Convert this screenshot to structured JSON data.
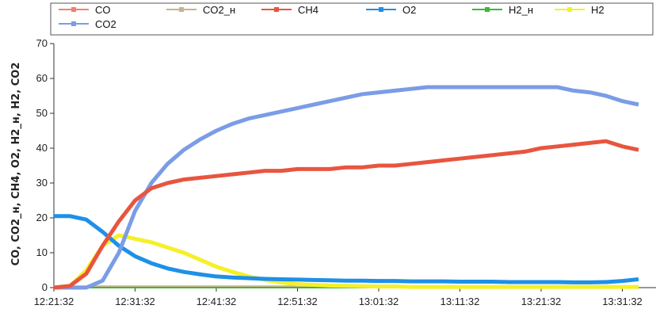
{
  "chart_data": {
    "type": "line",
    "title": "",
    "xlabel": "",
    "ylabel": "CO, CO2_н, CH4, O2, H2_н, H2, CO2",
    "ylim": [
      0,
      70
    ],
    "yticks": [
      0,
      10,
      20,
      30,
      40,
      50,
      60,
      70
    ],
    "xticks": [
      "12:21:32",
      "12:31:32",
      "12:41:32",
      "12:51:32",
      "13:01:32",
      "13:11:32",
      "13:21:32",
      "13:31:32"
    ],
    "grid": false,
    "legend_position": "top",
    "x": [
      "12:21:32",
      "12:23:32",
      "12:25:32",
      "12:27:32",
      "12:29:32",
      "12:31:32",
      "12:33:32",
      "12:35:32",
      "12:37:32",
      "12:39:32",
      "12:41:32",
      "12:43:32",
      "12:45:32",
      "12:47:32",
      "12:49:32",
      "12:51:32",
      "12:53:32",
      "12:55:32",
      "12:57:32",
      "12:59:32",
      "13:01:32",
      "13:03:32",
      "13:05:32",
      "13:07:32",
      "13:09:32",
      "13:11:32",
      "13:13:32",
      "13:15:32",
      "13:17:32",
      "13:19:32",
      "13:21:32",
      "13:23:32",
      "13:25:32",
      "13:27:32",
      "13:29:32",
      "13:31:32",
      "13:33:32"
    ],
    "series": [
      {
        "name": "CO",
        "color": "#f08070",
        "values": [
          0,
          0,
          0,
          0,
          0,
          0,
          0,
          0,
          0,
          0,
          0,
          0,
          0,
          0,
          0,
          0,
          0,
          0,
          0,
          0,
          0,
          0,
          0,
          0,
          0,
          0,
          0,
          0,
          0,
          0,
          0,
          0,
          0,
          0,
          0,
          0,
          0
        ]
      },
      {
        "name": "CO2_н",
        "color": "#c8b48c",
        "values": [
          0.4,
          0.4,
          0.4,
          0.4,
          0.4,
          0.4,
          0.4,
          0.4,
          0.4,
          0.4,
          0.4,
          0.4,
          0.4,
          0.4,
          0.4,
          0.4,
          0.4,
          0.4,
          0.4,
          0.4,
          0.4,
          0.4,
          0.4,
          0.4,
          0.4,
          0.4,
          0.4,
          0.4,
          0.4,
          0.4,
          0.4,
          0.4,
          0.4,
          0.4,
          0.4,
          0.4,
          0.4
        ]
      },
      {
        "name": "CH4",
        "color": "#e8553f",
        "values": [
          0,
          0.5,
          4,
          12,
          19,
          25,
          28.5,
          30,
          31,
          31.5,
          32,
          32.5,
          33,
          33.5,
          33.5,
          34,
          34,
          34,
          34.5,
          34.5,
          35,
          35,
          35.5,
          36,
          36.5,
          37,
          37.5,
          38,
          38.5,
          39,
          40,
          40.5,
          41,
          41.5,
          42,
          40.5,
          39.5
        ]
      },
      {
        "name": "O2",
        "color": "#1e90e8",
        "values": [
          20.5,
          20.5,
          19.5,
          16,
          12,
          9,
          7,
          5.5,
          4.5,
          3.8,
          3.2,
          2.9,
          2.7,
          2.5,
          2.4,
          2.3,
          2.2,
          2.1,
          2.0,
          2.0,
          1.9,
          1.9,
          1.8,
          1.8,
          1.8,
          1.7,
          1.7,
          1.7,
          1.6,
          1.6,
          1.6,
          1.6,
          1.5,
          1.5,
          1.6,
          1.9,
          2.4
        ]
      },
      {
        "name": "H2_н",
        "color": "#3cb83c",
        "values": [
          0,
          0,
          0,
          0,
          0,
          0,
          0,
          0,
          0,
          0,
          0,
          0,
          0,
          0,
          0,
          0,
          0,
          0,
          0,
          0,
          0,
          0,
          0,
          0,
          0,
          0,
          0,
          0,
          0,
          0,
          0,
          0,
          0,
          0,
          0,
          0,
          0
        ]
      },
      {
        "name": "H2",
        "color": "#f5f028",
        "values": [
          0,
          0.5,
          5,
          12,
          15,
          14,
          13,
          11.5,
          10,
          8,
          6,
          4.5,
          3.2,
          2.2,
          1.5,
          1,
          0.8,
          0.6,
          0.5,
          0.4,
          0.3,
          0.3,
          0.2,
          0.2,
          0.2,
          0.2,
          0.2,
          0.2,
          0.2,
          0.2,
          0.2,
          0.2,
          0.2,
          0.2,
          0.2,
          0.2,
          0.2
        ]
      },
      {
        "name": "CO2",
        "color": "#7b9ce6",
        "values": [
          0,
          0,
          0,
          2,
          10,
          22,
          30,
          35.5,
          39.5,
          42.5,
          45,
          47,
          48.5,
          49.5,
          50.5,
          51.5,
          52.5,
          53.5,
          54.5,
          55.5,
          56,
          56.5,
          57,
          57.5,
          57.5,
          57.5,
          57.5,
          57.5,
          57.5,
          57.5,
          57.5,
          57.5,
          56.5,
          56,
          55,
          53.5,
          52.5
        ]
      }
    ]
  }
}
